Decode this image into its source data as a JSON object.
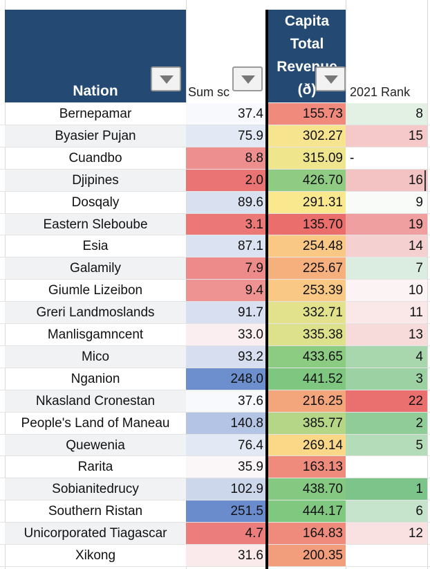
{
  "headers": {
    "nation": "Nation",
    "sum": "Sum sc",
    "capita": [
      "Capita",
      "Total",
      "Revenue",
      "(ð)"
    ],
    "rank": "2021 Rank"
  },
  "rows": [
    {
      "nation": "Bernepamar",
      "sum": "37.4",
      "capita": "155.73",
      "rank": "8",
      "sum_color": "#f8f9fd",
      "cap_color": "#ef8a7c",
      "rank_color": "#e3f1e5"
    },
    {
      "nation": "Byasier Pujan",
      "sum": "75.9",
      "capita": "302.27",
      "rank": "15",
      "sum_color": "#e2e8f4",
      "cap_color": "#f7e48f",
      "rank_color": "#f5c9c9"
    },
    {
      "nation": "Cuandbo",
      "sum": "8.8",
      "capita": "315.09",
      "rank": "",
      "rank_dash": "-",
      "sum_color": "#ed8f8f",
      "cap_color": "#eee58d",
      "rank_color": "#ffffff"
    },
    {
      "nation": "Djipines",
      "sum": "2.0",
      "capita": "426.70",
      "rank": "16",
      "sum_color": "#ea7474",
      "cap_color": "#8fcb83",
      "rank_color": "#f3c2c2"
    },
    {
      "nation": "Dosqaly",
      "sum": "89.6",
      "capita": "291.31",
      "rank": "9",
      "sum_color": "#d9e1f1",
      "cap_color": "#fae88e",
      "rank_color": "#f8fbf8"
    },
    {
      "nation": "Eastern Sleboube",
      "sum": "3.1",
      "capita": "135.70",
      "rank": "19",
      "sum_color": "#eb7777",
      "cap_color": "#ea6f6c",
      "rank_color": "#ef9f9f"
    },
    {
      "nation": "Esia",
      "sum": "87.1",
      "capita": "254.48",
      "rank": "14",
      "sum_color": "#dbe3f2",
      "cap_color": "#f8c884",
      "rank_color": "#f5d0d0"
    },
    {
      "nation": "Galamily",
      "sum": "7.9",
      "capita": "225.67",
      "rank": "7",
      "sum_color": "#ed8b8b",
      "cap_color": "#f5b07e",
      "rank_color": "#dbede0"
    },
    {
      "nation": "Giumle Lizeibon",
      "sum": "9.4",
      "capita": "253.39",
      "rank": "10",
      "sum_color": "#ee9292",
      "cap_color": "#f8c884",
      "rank_color": "#fcf4f4"
    },
    {
      "nation": "Greri Landmoslands",
      "sum": "91.7",
      "capita": "332.71",
      "rank": "11",
      "sum_color": "#d7dff0",
      "cap_color": "#e1e28b",
      "rank_color": "#fae8e8"
    },
    {
      "nation": "Manlisgamncent",
      "sum": "33.0",
      "capita": "335.38",
      "rank": "13",
      "sum_color": "#fbeef0",
      "cap_color": "#dee18b",
      "rank_color": "#f7dada"
    },
    {
      "nation": "Mico",
      "sum": "93.2",
      "capita": "433.65",
      "rank": "4",
      "sum_color": "#d6def0",
      "cap_color": "#8ccb82",
      "rank_color": "#a8d7ae"
    },
    {
      "nation": "Nganion",
      "sum": "248.0",
      "capita": "441.52",
      "rank": "3",
      "sum_color": "#6d8fcd",
      "cap_color": "#7fc680",
      "rank_color": "#9cd2a3"
    },
    {
      "nation": "Nkasland Cronestan",
      "sum": "37.6",
      "capita": "216.25",
      "rank": "22",
      "sum_color": "#f8f9fd",
      "cap_color": "#f3a57c",
      "rank_color": "#ea7070"
    },
    {
      "nation": "People's Land of Maneau",
      "sum": "140.8",
      "capita": "385.77",
      "rank": "2",
      "sum_color": "#b3c4e4",
      "cap_color": "#b5d686",
      "rank_color": "#8fcc98"
    },
    {
      "nation": "Quewenia",
      "sum": "76.4",
      "capita": "269.14",
      "rank": "5",
      "sum_color": "#e2e8f4",
      "cap_color": "#fad888",
      "rank_color": "#b4dcb9"
    },
    {
      "nation": "Rarita",
      "sum": "35.9",
      "capita": "163.13",
      "rank": "",
      "sum_color": "#fbf6f7",
      "cap_color": "#ef8b7c",
      "rank_color": "#ffffff"
    },
    {
      "nation": "Sobianitedrucy",
      "sum": "102.9",
      "capita": "438.70",
      "rank": "1",
      "sum_color": "#ccd7ec",
      "cap_color": "#84c881",
      "rank_color": "#7cc48a"
    },
    {
      "nation": "Southern Ristan",
      "sum": "251.5",
      "capita": "444.17",
      "rank": "6",
      "sum_color": "#6a8ccc",
      "cap_color": "#80c780",
      "rank_color": "#c6e4cb"
    },
    {
      "nation": "Unicorporated Tiagascar",
      "sum": "4.7",
      "capita": "164.83",
      "rank": "12",
      "sum_color": "#ec7d7d",
      "cap_color": "#ef8b7c",
      "rank_color": "#f9e1e1"
    },
    {
      "nation": "Xikong",
      "sum": "31.6",
      "capita": "200.35",
      "rank": "",
      "sum_color": "#faeaec",
      "cap_color": "#f29e7c",
      "rank_color": "#ffffff"
    }
  ]
}
